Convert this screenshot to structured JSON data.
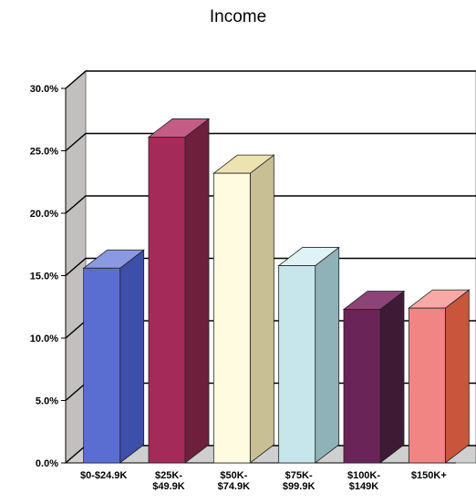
{
  "chart_data": {
    "type": "bar",
    "title": "Income",
    "xlabel": "",
    "ylabel": "",
    "categories": [
      [
        "$0-$24.9K"
      ],
      [
        "$25K-",
        "$49.9K"
      ],
      [
        "$50K-",
        "$74.9K"
      ],
      [
        "$75K-",
        "$99.9K"
      ],
      [
        "$100K-",
        "$149K"
      ],
      [
        "$150K+"
      ]
    ],
    "values": [
      15.6,
      26.1,
      23.2,
      15.8,
      12.3,
      12.4
    ],
    "ylim": [
      0,
      30
    ],
    "yticks": [
      "0.0%",
      "5.0%",
      "10.0%",
      "15.0%",
      "20.0%",
      "25.0%",
      "30.0%"
    ],
    "grid": true,
    "style": "3d",
    "colors": [
      {
        "front": "#5a6ed2",
        "side": "#3d4fa8",
        "top": "#8b98e2"
      },
      {
        "front": "#a42a5a",
        "side": "#6e1f3c",
        "top": "#c55c85"
      },
      {
        "front": "#fffbe0",
        "side": "#c9bf95",
        "top": "#ece3b0"
      },
      {
        "front": "#c6e6ec",
        "side": "#8fb2b8",
        "top": "#dff2f5"
      },
      {
        "front": "#6a2458",
        "side": "#3e1a35",
        "top": "#8c4478"
      },
      {
        "front": "#f08584",
        "side": "#c8553c",
        "top": "#f7aaa5"
      }
    ]
  }
}
